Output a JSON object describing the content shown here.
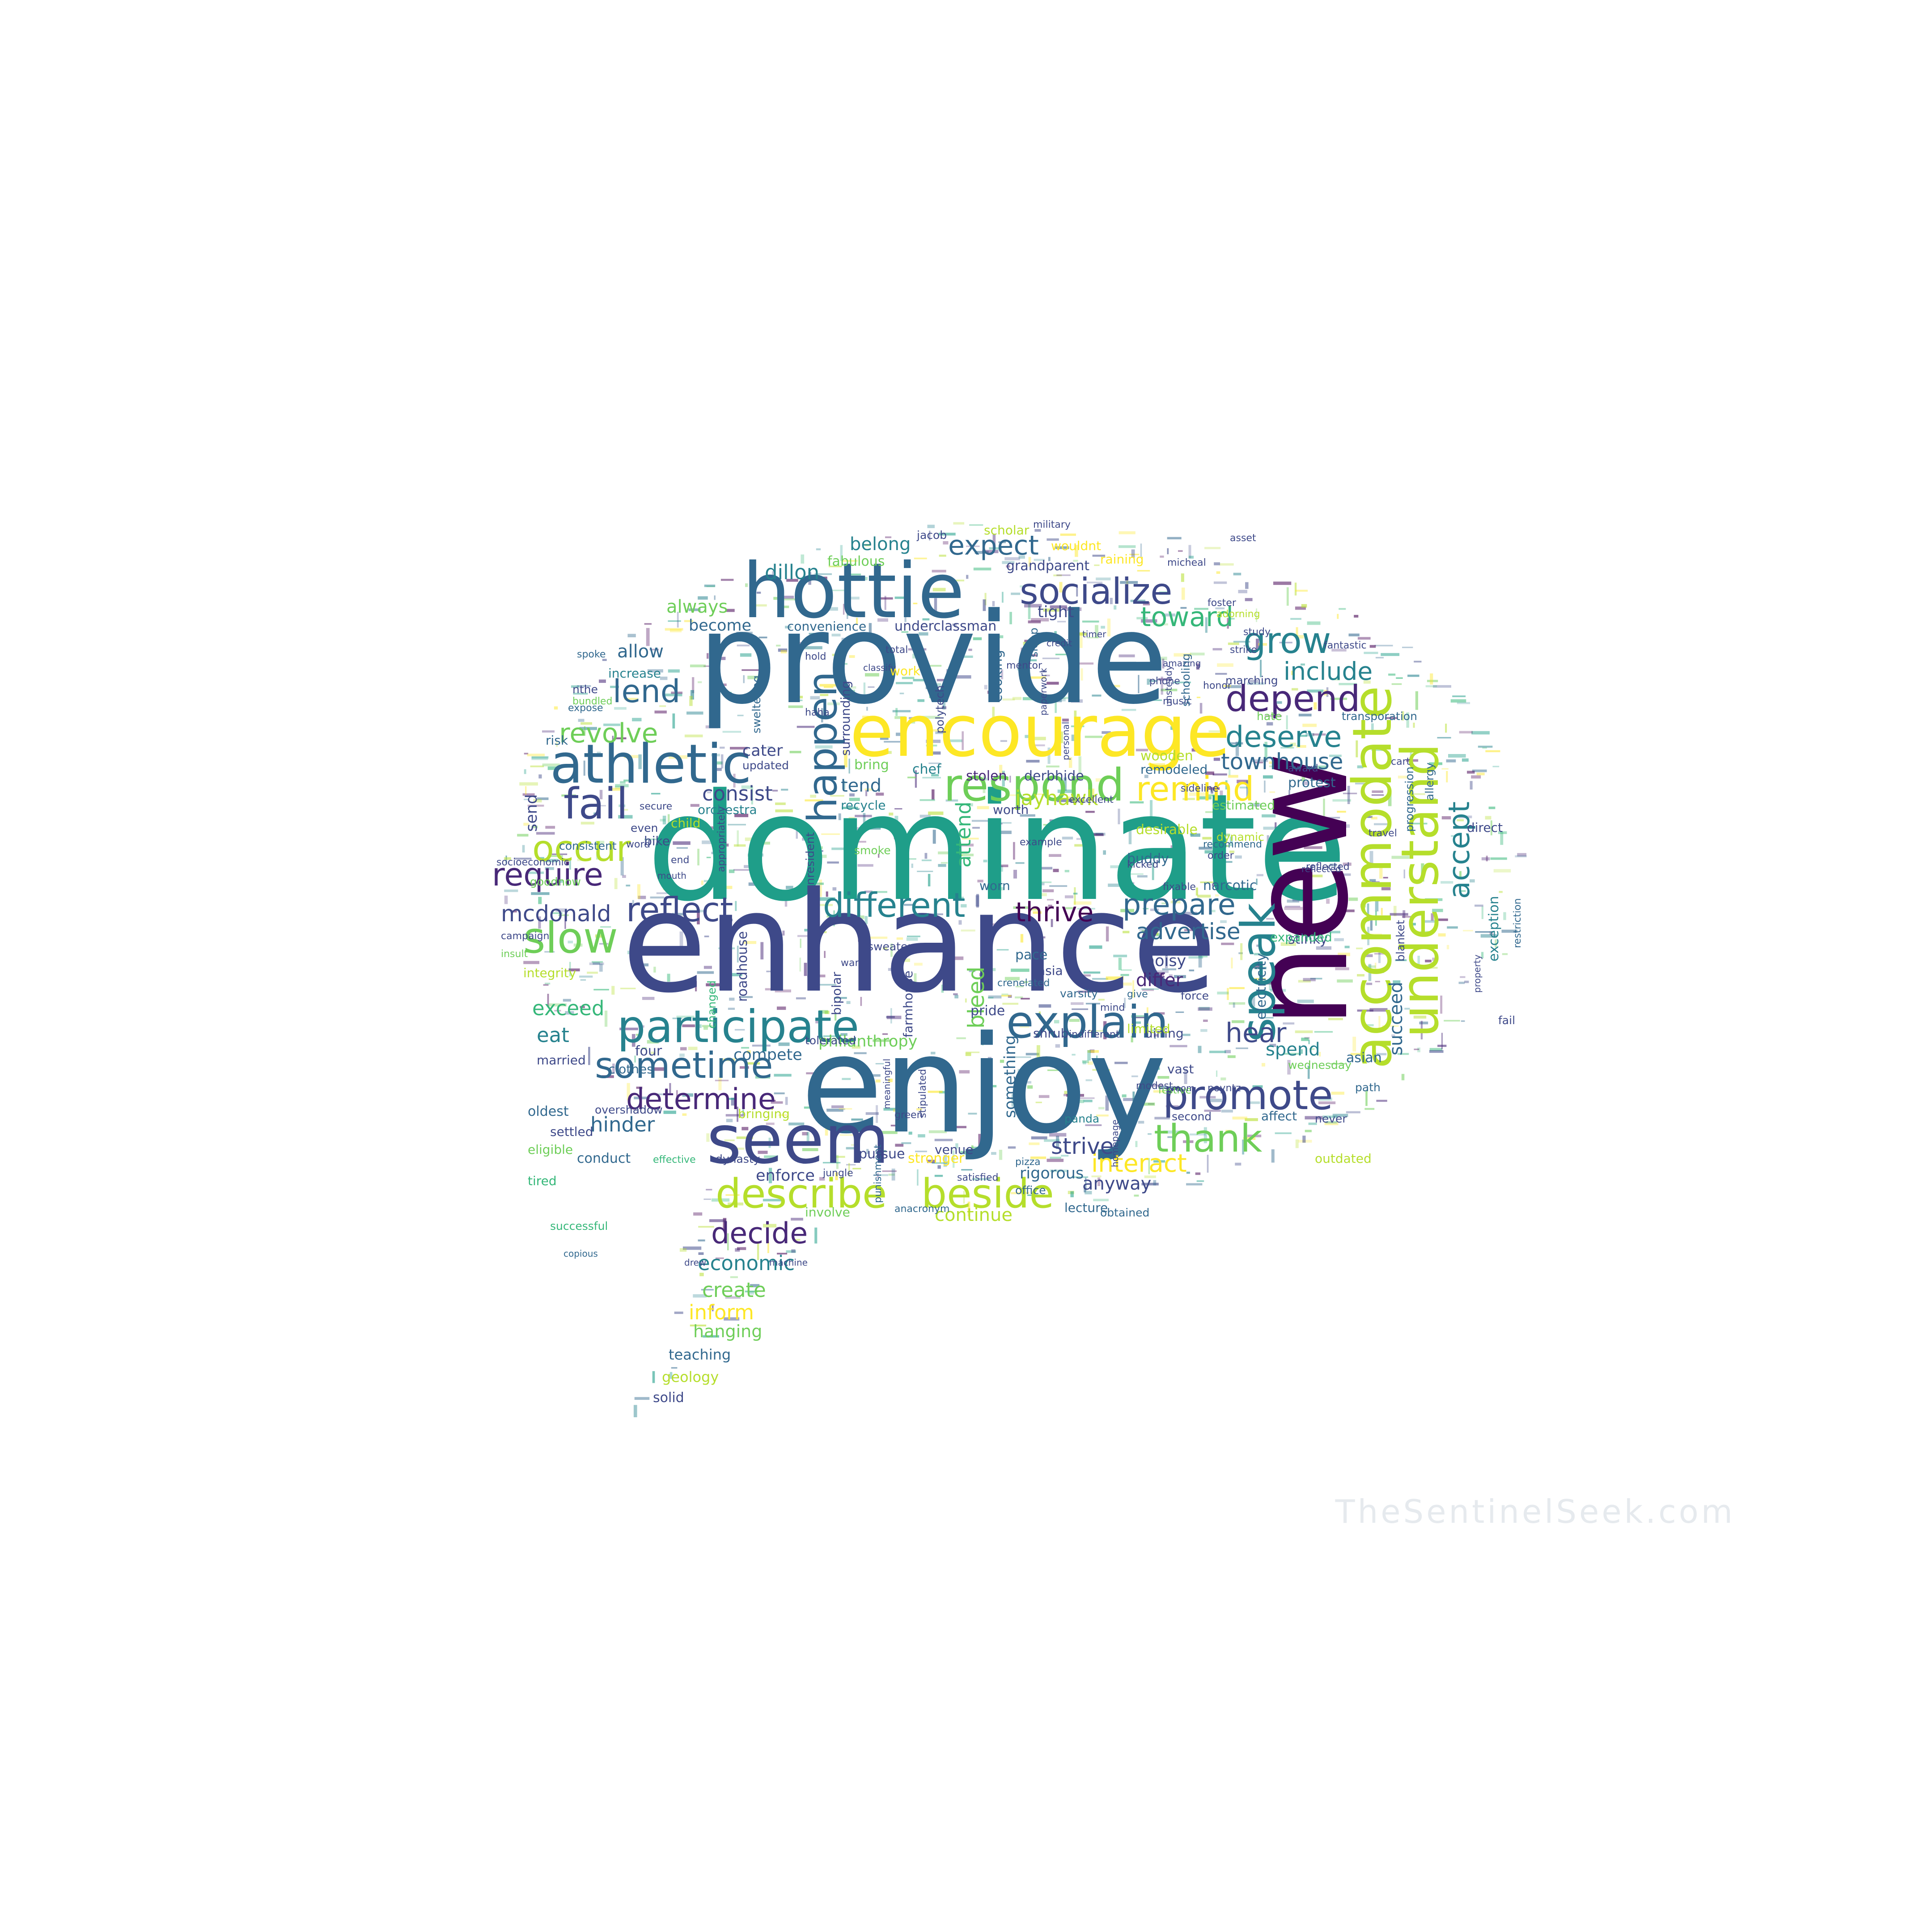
{
  "palette": [
    "#440154",
    "#482878",
    "#3e4989",
    "#31688e",
    "#26828e",
    "#1f9e89",
    "#35b779",
    "#6ece58",
    "#b5de2b",
    "#fde725"
  ],
  "word_cloud": {
    "shape": "speech-bubble",
    "watermark": "TheSentinelSeek.com",
    "words": [
      {
        "text": "dominate",
        "color": "#1f9e89"
      },
      {
        "text": "enhance",
        "color": "#3e4989"
      },
      {
        "text": "provide",
        "color": "#31688e"
      },
      {
        "text": "new",
        "color": "#440154"
      },
      {
        "text": "enjoy",
        "color": "#31688e"
      },
      {
        "text": "encourage",
        "color": "#fde725"
      },
      {
        "text": "hottie",
        "color": "#31688e"
      },
      {
        "text": "seem",
        "color": "#3e4989"
      },
      {
        "text": "accommodate",
        "color": "#b5de2b"
      },
      {
        "text": "understand",
        "color": "#b5de2b"
      },
      {
        "text": "athletic",
        "color": "#31688e"
      },
      {
        "text": "participate",
        "color": "#26828e"
      },
      {
        "text": "respond",
        "color": "#6ece58"
      },
      {
        "text": "explain",
        "color": "#31688e"
      },
      {
        "text": "promote",
        "color": "#3e4989"
      },
      {
        "text": "speak",
        "color": "#26828e"
      },
      {
        "text": "socialize",
        "color": "#3e4989"
      },
      {
        "text": "depend",
        "color": "#482878"
      },
      {
        "text": "grow",
        "color": "#26828e"
      },
      {
        "text": "fail",
        "color": "#3e4989"
      },
      {
        "text": "slow",
        "color": "#6ece58"
      },
      {
        "text": "occur",
        "color": "#b5de2b"
      },
      {
        "text": "require",
        "color": "#482878"
      },
      {
        "text": "reflect",
        "color": "#3e4989"
      },
      {
        "text": "different",
        "color": "#26828e"
      },
      {
        "text": "thrive",
        "color": "#440154"
      },
      {
        "text": "prepare",
        "color": "#31688e"
      },
      {
        "text": "sometime",
        "color": "#31688e"
      },
      {
        "text": "determine",
        "color": "#482878"
      },
      {
        "text": "describe",
        "color": "#b5de2b"
      },
      {
        "text": "beside",
        "color": "#b5de2b"
      },
      {
        "text": "thank",
        "color": "#6ece58"
      },
      {
        "text": "remind",
        "color": "#fde725"
      },
      {
        "text": "deserve",
        "color": "#26828e"
      },
      {
        "text": "accept",
        "color": "#26828e"
      },
      {
        "text": "happen",
        "color": "#31688e"
      },
      {
        "text": "lend",
        "color": "#31688e"
      },
      {
        "text": "revolve",
        "color": "#6ece58"
      },
      {
        "text": "expect",
        "color": "#31688e"
      },
      {
        "text": "toward",
        "color": "#35b779"
      },
      {
        "text": "include",
        "color": "#26828e"
      },
      {
        "text": "townhouse",
        "color": "#31688e"
      },
      {
        "text": "hear",
        "color": "#3e4989"
      },
      {
        "text": "decide",
        "color": "#482878"
      },
      {
        "text": "interact",
        "color": "#fde725"
      },
      {
        "text": "strive",
        "color": "#3e4989"
      },
      {
        "text": "advertise",
        "color": "#31688e"
      },
      {
        "text": "economic",
        "color": "#26828e"
      },
      {
        "text": "create",
        "color": "#6ece58"
      },
      {
        "text": "inform",
        "color": "#fde725"
      },
      {
        "text": "hanging",
        "color": "#6ece58"
      },
      {
        "text": "teaching",
        "color": "#31688e"
      },
      {
        "text": "geology",
        "color": "#b5de2b"
      },
      {
        "text": "solid",
        "color": "#3e4989"
      },
      {
        "text": "mcdonald",
        "color": "#3e4989"
      },
      {
        "text": "hinder",
        "color": "#31688e"
      },
      {
        "text": "exceed",
        "color": "#35b779"
      },
      {
        "text": "eat",
        "color": "#26828e"
      },
      {
        "text": "dillon",
        "color": "#26828e"
      },
      {
        "text": "belong",
        "color": "#26828e"
      },
      {
        "text": "always",
        "color": "#6ece58"
      },
      {
        "text": "allow",
        "color": "#31688e"
      },
      {
        "text": "consist",
        "color": "#3e4989"
      },
      {
        "text": "tend",
        "color": "#31688e"
      },
      {
        "text": "jayhawk",
        "color": "#b5de2b"
      },
      {
        "text": "attend",
        "color": "#35b779"
      },
      {
        "text": "bleed",
        "color": "#6ece58"
      },
      {
        "text": "anyway",
        "color": "#3e4989"
      },
      {
        "text": "continue",
        "color": "#b5de2b"
      },
      {
        "text": "spend",
        "color": "#26828e"
      },
      {
        "text": "succeed",
        "color": "#31688e"
      },
      {
        "text": "differ",
        "color": "#482878"
      },
      {
        "text": "noisy",
        "color": "#3e4989"
      },
      {
        "text": "compete",
        "color": "#31688e"
      },
      {
        "text": "enforce",
        "color": "#3e4989"
      },
      {
        "text": "four",
        "color": "#3e4989"
      },
      {
        "text": "become",
        "color": "#31688e"
      },
      {
        "text": "send",
        "color": "#3e4989"
      },
      {
        "text": "stolen",
        "color": "#482878"
      },
      {
        "text": "narcotic",
        "color": "#31688e"
      },
      {
        "text": "protest",
        "color": "#31688e"
      },
      {
        "text": "exception",
        "color": "#26828e"
      },
      {
        "text": "stinky",
        "color": "#3e4989"
      },
      {
        "text": "asian",
        "color": "#31688e"
      },
      {
        "text": "path",
        "color": "#31688e"
      },
      {
        "text": "buddy",
        "color": "#31688e"
      },
      {
        "text": "grandparent",
        "color": "#3e4989"
      },
      {
        "text": "fabulous",
        "color": "#6ece58"
      },
      {
        "text": "wouldnt",
        "color": "#fde725"
      },
      {
        "text": "raining",
        "color": "#fde725"
      },
      {
        "text": "underclassman",
        "color": "#3e4989"
      },
      {
        "text": "convenience",
        "color": "#31688e"
      },
      {
        "text": "tight",
        "color": "#3e4989"
      },
      {
        "text": "marching",
        "color": "#3e4989"
      },
      {
        "text": "transporation",
        "color": "#31688e"
      },
      {
        "text": "phone",
        "color": "#3e4989"
      },
      {
        "text": "music",
        "color": "#3e4989"
      },
      {
        "text": "worth",
        "color": "#3e4989"
      },
      {
        "text": "example",
        "color": "#3e4989"
      },
      {
        "text": "remodeled",
        "color": "#31688e"
      },
      {
        "text": "estimated",
        "color": "#6ece58"
      },
      {
        "text": "recommend",
        "color": "#31688e"
      },
      {
        "text": "reflected",
        "color": "#3e4989"
      },
      {
        "text": "expanded",
        "color": "#35b779"
      },
      {
        "text": "dining",
        "color": "#3e4989"
      },
      {
        "text": "force",
        "color": "#3e4989"
      },
      {
        "text": "give",
        "color": "#31688e"
      },
      {
        "text": "affect",
        "color": "#31688e"
      },
      {
        "text": "second",
        "color": "#3e4989"
      },
      {
        "text": "vast",
        "color": "#3e4989"
      },
      {
        "text": "wednesday",
        "color": "#6ece58"
      },
      {
        "text": "electricity",
        "color": "#31688e"
      },
      {
        "text": "pace",
        "color": "#31688e"
      },
      {
        "text": "asia",
        "color": "#3e4989"
      },
      {
        "text": "varsity",
        "color": "#31688e"
      },
      {
        "text": "lecture",
        "color": "#31688e"
      },
      {
        "text": "obtained",
        "color": "#31688e"
      },
      {
        "text": "pizza",
        "color": "#31688e"
      },
      {
        "text": "panda",
        "color": "#26828e"
      },
      {
        "text": "rigorous",
        "color": "#31688e"
      },
      {
        "text": "philanthropy",
        "color": "#6ece58"
      },
      {
        "text": "stronger",
        "color": "#fde725"
      },
      {
        "text": "bringing",
        "color": "#b5de2b"
      },
      {
        "text": "punishment",
        "color": "#31688e"
      },
      {
        "text": "pursue",
        "color": "#3e4989"
      },
      {
        "text": "jungle",
        "color": "#3e4989"
      },
      {
        "text": "anacronym",
        "color": "#31688e"
      },
      {
        "text": "involve",
        "color": "#6ece58"
      },
      {
        "text": "machine",
        "color": "#3e4989"
      },
      {
        "text": "effective",
        "color": "#35b779"
      },
      {
        "text": "dynasty",
        "color": "#3e4989"
      },
      {
        "text": "conduct",
        "color": "#31688e"
      },
      {
        "text": "successful",
        "color": "#35b779"
      },
      {
        "text": "copious",
        "color": "#31688e"
      },
      {
        "text": "tired",
        "color": "#35b779"
      },
      {
        "text": "eligible",
        "color": "#6ece58"
      },
      {
        "text": "oldest",
        "color": "#31688e"
      },
      {
        "text": "overshadow",
        "color": "#3e4989"
      },
      {
        "text": "clothes",
        "color": "#31688e"
      },
      {
        "text": "married",
        "color": "#3e4989"
      },
      {
        "text": "integrity",
        "color": "#b5de2b"
      },
      {
        "text": "insult",
        "color": "#6ece58"
      },
      {
        "text": "campaign",
        "color": "#3e4989"
      },
      {
        "text": "socioeconomic",
        "color": "#3e4989"
      },
      {
        "text": "consistent",
        "color": "#31688e"
      },
      {
        "text": "risk",
        "color": "#31688e"
      },
      {
        "text": "expose",
        "color": "#31688e"
      },
      {
        "text": "increase",
        "color": "#26828e"
      },
      {
        "text": "nthe",
        "color": "#3e4989"
      },
      {
        "text": "cater",
        "color": "#3e4989"
      },
      {
        "text": "updated",
        "color": "#3e4989"
      },
      {
        "text": "orchestra",
        "color": "#26828e"
      },
      {
        "text": "secure",
        "color": "#3e4989"
      },
      {
        "text": "bike",
        "color": "#3e4989"
      },
      {
        "text": "even",
        "color": "#3e4989"
      },
      {
        "text": "word",
        "color": "#3e4989"
      },
      {
        "text": "recycle",
        "color": "#26828e"
      },
      {
        "text": "bring",
        "color": "#6ece58"
      },
      {
        "text": "chef",
        "color": "#26828e"
      },
      {
        "text": "derbhide",
        "color": "#3e4989"
      },
      {
        "text": "excellent",
        "color": "#3e4989"
      },
      {
        "text": "desirable",
        "color": "#b5de2b"
      },
      {
        "text": "limited",
        "color": "#b5de2b"
      },
      {
        "text": "something",
        "color": "#31688e"
      },
      {
        "text": "roadhouse",
        "color": "#3e4989"
      },
      {
        "text": "bipolar",
        "color": "#3e4989"
      },
      {
        "text": "farmhouse",
        "color": "#3e4989"
      },
      {
        "text": "tolerated",
        "color": "#3e4989"
      },
      {
        "text": "changed",
        "color": "#35b779"
      },
      {
        "text": "pride",
        "color": "#3e4989"
      },
      {
        "text": "shrub",
        "color": "#3e4989"
      },
      {
        "text": "crenelated",
        "color": "#31688e"
      },
      {
        "text": "allergy",
        "color": "#31688e"
      },
      {
        "text": "progression",
        "color": "#31688e"
      },
      {
        "text": "direct",
        "color": "#3e4989"
      },
      {
        "text": "blanket",
        "color": "#3e4989"
      },
      {
        "text": "fixable",
        "color": "#3e4989"
      },
      {
        "text": "kicked",
        "color": "#3e4989"
      },
      {
        "text": "sideline",
        "color": "#3e4989"
      },
      {
        "text": "award",
        "color": "#3e4989"
      },
      {
        "text": "cart",
        "color": "#3e4989"
      },
      {
        "text": "fantastic",
        "color": "#3e4989"
      },
      {
        "text": "hate",
        "color": "#6ece58"
      },
      {
        "text": "adorning",
        "color": "#b5de2b"
      },
      {
        "text": "foster",
        "color": "#3e4989"
      },
      {
        "text": "study",
        "color": "#3e4989"
      },
      {
        "text": "micheal",
        "color": "#3e4989"
      },
      {
        "text": "military",
        "color": "#3e4989"
      },
      {
        "text": "scholar",
        "color": "#b5de2b"
      },
      {
        "text": "jacob",
        "color": "#3e4989"
      },
      {
        "text": "honor",
        "color": "#3e4989"
      },
      {
        "text": "asset",
        "color": "#3e4989"
      },
      {
        "text": "mentor",
        "color": "#3e4989"
      },
      {
        "text": "sleep",
        "color": "#31688e"
      },
      {
        "text": "surrounding",
        "color": "#3e4989"
      },
      {
        "text": "sweltering",
        "color": "#31688e"
      },
      {
        "text": "haha",
        "color": "#3e4989"
      },
      {
        "text": "hold",
        "color": "#3e4989"
      },
      {
        "text": "cooking",
        "color": "#31688e"
      },
      {
        "text": "outdated",
        "color": "#b5de2b"
      },
      {
        "text": "strike",
        "color": "#3e4989"
      },
      {
        "text": "dynamic",
        "color": "#b5de2b"
      },
      {
        "text": "wooden",
        "color": "#b5de2b"
      },
      {
        "text": "festive",
        "color": "#6ece58"
      },
      {
        "text": "poyntz",
        "color": "#3e4989"
      },
      {
        "text": "homepage",
        "color": "#3e4989"
      },
      {
        "text": "worn",
        "color": "#31688e"
      },
      {
        "text": "smoke",
        "color": "#6ece58"
      },
      {
        "text": "venue",
        "color": "#3e4989"
      },
      {
        "text": "green",
        "color": "#3e4989"
      },
      {
        "text": "satisfied",
        "color": "#3e4989"
      },
      {
        "text": "office",
        "color": "#31688e"
      },
      {
        "text": "stipulated",
        "color": "#3e4989"
      },
      {
        "text": "meaningful",
        "color": "#3e4989"
      },
      {
        "text": "classify",
        "color": "#3e4989"
      },
      {
        "text": "sweater",
        "color": "#3e4989"
      },
      {
        "text": "warm",
        "color": "#3e4989"
      },
      {
        "text": "nonresident",
        "color": "#3e4989"
      },
      {
        "text": "indifferent",
        "color": "#3e4989"
      },
      {
        "text": "modest",
        "color": "#3e4989"
      },
      {
        "text": "spoke",
        "color": "#31688e"
      },
      {
        "text": "settled",
        "color": "#3e4989"
      },
      {
        "text": "drew",
        "color": "#3e4989"
      },
      {
        "text": "bundled",
        "color": "#6ece58"
      },
      {
        "text": "total",
        "color": "#3e4989"
      },
      {
        "text": "work",
        "color": "#fde725"
      },
      {
        "text": "polytech",
        "color": "#3e4989"
      },
      {
        "text": "paperwork",
        "color": "#3e4989"
      },
      {
        "text": "personal",
        "color": "#3e4989"
      },
      {
        "text": "timer",
        "color": "#3e4989"
      },
      {
        "text": "credit",
        "color": "#3e4989"
      },
      {
        "text": "amazing",
        "color": "#3e4989"
      },
      {
        "text": "schooling",
        "color": "#31688e"
      },
      {
        "text": "unsteady",
        "color": "#3e4989"
      },
      {
        "text": "travel",
        "color": "#3e4989"
      },
      {
        "text": "order",
        "color": "#3e4989"
      },
      {
        "text": "restriction",
        "color": "#31688e"
      },
      {
        "text": "property",
        "color": "#3e4989"
      },
      {
        "text": "fail",
        "color": "#3e4989"
      },
      {
        "text": "room",
        "color": "#3e4989"
      },
      {
        "text": "never",
        "color": "#3e4989"
      },
      {
        "text": "mind",
        "color": "#3e4989"
      },
      {
        "text": "goodnow",
        "color": "#6ece58"
      },
      {
        "text": "child",
        "color": "#b5de2b"
      },
      {
        "text": "appropriately",
        "color": "#3e4989"
      },
      {
        "text": "mouth",
        "color": "#3e4989"
      },
      {
        "text": "end",
        "color": "#3e4989"
      },
      {
        "text": "reflected",
        "color": "#3e4989"
      }
    ]
  }
}
